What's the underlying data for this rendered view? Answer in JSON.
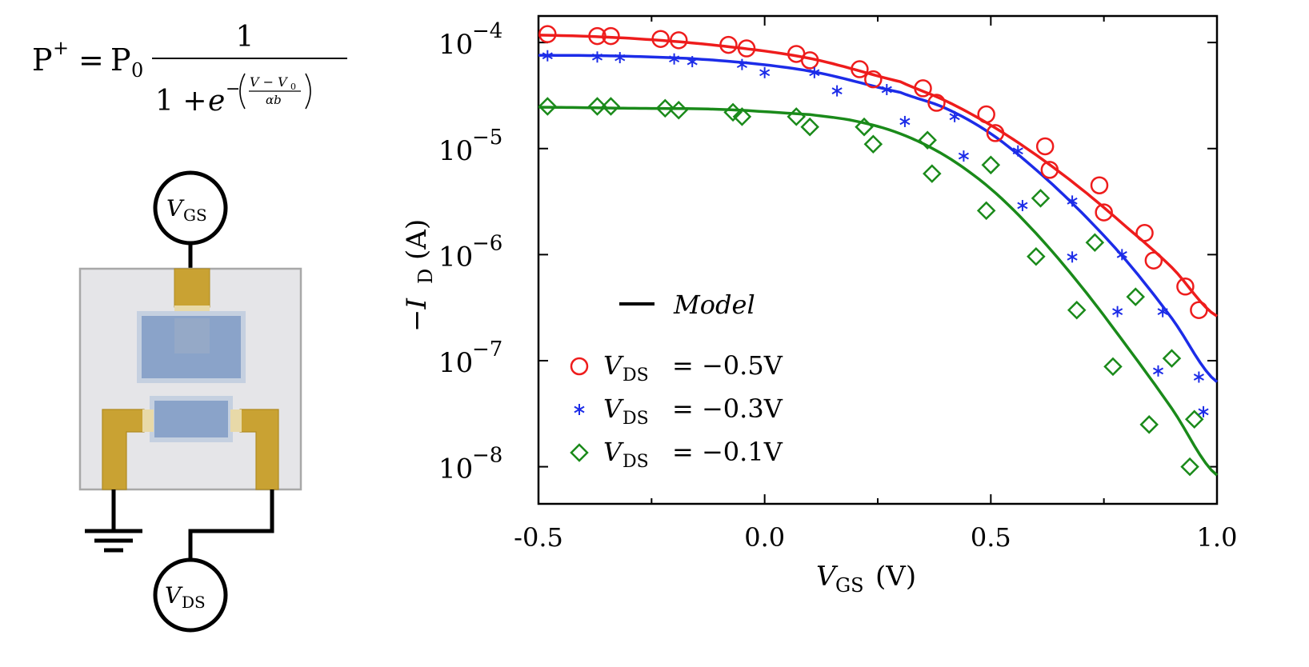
{
  "formula": {
    "lhs": "P",
    "lhs_sup": "+",
    "eq": "=",
    "coef": "P",
    "coef_sub": "0",
    "numerator": "1",
    "den_one": "1 +",
    "den_e": "e",
    "exp_minus": "−",
    "exp_num": "V − V",
    "exp_num_sub": "0",
    "exp_den": "αb"
  },
  "circuit": {
    "vgs_label": "V",
    "vgs_sub": "GS",
    "vds_label": "V",
    "vds_sub": "DS"
  },
  "chart_data": {
    "type": "scatter",
    "title": "",
    "xlabel": "V",
    "xlabel_sub": "GS",
    "xlabel_unit": "(V)",
    "ylabel": "−I",
    "ylabel_sub": "D",
    "ylabel_unit": "(A)",
    "xlim": [
      -0.5,
      1.0
    ],
    "ylim_log10": [
      -8.35,
      -3.75
    ],
    "y_scale": "log",
    "x_ticks": [
      {
        "value": -0.5,
        "label": "-0.5"
      },
      {
        "value": 0.0,
        "label": "0.0"
      },
      {
        "value": 0.5,
        "label": "0.5"
      },
      {
        "value": 1.0,
        "label": "1.0"
      }
    ],
    "y_ticks": [
      {
        "exp": -4,
        "base": "10",
        "sup": "−4"
      },
      {
        "exp": -5,
        "base": "10",
        "sup": "−5"
      },
      {
        "exp": -6,
        "base": "10",
        "sup": "−6"
      },
      {
        "exp": -7,
        "base": "10",
        "sup": "−7"
      },
      {
        "exp": -8,
        "base": "10",
        "sup": "−8"
      }
    ],
    "legend_model": "Model",
    "series": [
      {
        "name": "V_DS = −0.5V",
        "label_v": "V",
        "label_sub": "DS",
        "label_rest": "= −0.5V",
        "color": "#ee1c1c",
        "marker": "circle",
        "points": [
          [
            -0.48,
            0.00012
          ],
          [
            -0.37,
            0.000115
          ],
          [
            -0.34,
            0.000115
          ],
          [
            -0.23,
            0.000108
          ],
          [
            -0.19,
            0.000105
          ],
          [
            -0.08,
            9.5e-05
          ],
          [
            -0.04,
            8.8e-05
          ],
          [
            0.07,
            7.8e-05
          ],
          [
            0.1,
            6.8e-05
          ],
          [
            0.21,
            5.6e-05
          ],
          [
            0.24,
            4.5e-05
          ],
          [
            0.35,
            3.7e-05
          ],
          [
            0.38,
            2.7e-05
          ],
          [
            0.49,
            2.1e-05
          ],
          [
            0.51,
            1.4e-05
          ],
          [
            0.62,
            1.05e-05
          ],
          [
            0.63,
            6.3e-06
          ],
          [
            0.74,
            4.5e-06
          ],
          [
            0.75,
            2.5e-06
          ],
          [
            0.84,
            1.6e-06
          ],
          [
            0.86,
            8.8e-07
          ],
          [
            0.93,
            5e-07
          ],
          [
            0.96,
            3e-07
          ]
        ],
        "model_log10": [
          [
            -0.5,
            -3.93
          ],
          [
            -0.3,
            -3.96
          ],
          [
            -0.1,
            -4.03
          ],
          [
            0.1,
            -4.15
          ],
          [
            0.3,
            -4.37
          ],
          [
            0.4,
            -4.55
          ],
          [
            0.5,
            -4.78
          ],
          [
            0.6,
            -5.06
          ],
          [
            0.7,
            -5.38
          ],
          [
            0.8,
            -5.74
          ],
          [
            0.9,
            -6.12
          ],
          [
            1.0,
            -6.58
          ]
        ]
      },
      {
        "name": "V_DS = −0.3V",
        "label_v": "V",
        "label_sub": "DS",
        "label_rest": "= −0.3V",
        "color": "#1c2ce8",
        "marker": "star",
        "points": [
          [
            -0.48,
            7.5e-05
          ],
          [
            -0.37,
            7.3e-05
          ],
          [
            -0.32,
            7.2e-05
          ],
          [
            -0.2,
            7e-05
          ],
          [
            -0.16,
            6.6e-05
          ],
          [
            -0.05,
            6.2e-05
          ],
          [
            0.0,
            5.2e-05
          ],
          [
            0.11,
            5.2e-05
          ],
          [
            0.16,
            3.5e-05
          ],
          [
            0.27,
            3.6e-05
          ],
          [
            0.31,
            1.8e-05
          ],
          [
            0.42,
            2e-05
          ],
          [
            0.44,
            8.5e-06
          ],
          [
            0.56,
            9.5e-06
          ],
          [
            0.57,
            2.9e-06
          ],
          [
            0.68,
            3.2e-06
          ],
          [
            0.68,
            9.5e-07
          ],
          [
            0.79,
            1e-06
          ],
          [
            0.78,
            2.9e-07
          ],
          [
            0.88,
            2.9e-07
          ],
          [
            0.87,
            8e-08
          ],
          [
            0.96,
            7e-08
          ],
          [
            0.97,
            3.3e-08
          ]
        ],
        "model_log10": [
          [
            -0.5,
            -4.12
          ],
          [
            -0.3,
            -4.13
          ],
          [
            -0.1,
            -4.17
          ],
          [
            0.1,
            -4.27
          ],
          [
            0.3,
            -4.47
          ],
          [
            0.4,
            -4.62
          ],
          [
            0.5,
            -4.86
          ],
          [
            0.6,
            -5.2
          ],
          [
            0.7,
            -5.6
          ],
          [
            0.8,
            -6.06
          ],
          [
            0.9,
            -6.6
          ],
          [
            1.0,
            -7.2
          ]
        ]
      },
      {
        "name": "V_DS = −0.1V",
        "label_v": "V",
        "label_sub": "DS",
        "label_rest": "= −0.1V",
        "color": "#1a8a1a",
        "marker": "diamond",
        "points": [
          [
            -0.48,
            2.5e-05
          ],
          [
            -0.37,
            2.5e-05
          ],
          [
            -0.34,
            2.5e-05
          ],
          [
            -0.22,
            2.4e-05
          ],
          [
            -0.19,
            2.3e-05
          ],
          [
            -0.07,
            2.2e-05
          ],
          [
            -0.05,
            2e-05
          ],
          [
            0.07,
            2e-05
          ],
          [
            0.1,
            1.6e-05
          ],
          [
            0.22,
            1.6e-05
          ],
          [
            0.24,
            1.1e-05
          ],
          [
            0.36,
            1.2e-05
          ],
          [
            0.37,
            5.8e-06
          ],
          [
            0.5,
            7e-06
          ],
          [
            0.49,
            2.6e-06
          ],
          [
            0.61,
            3.4e-06
          ],
          [
            0.6,
            9.6e-07
          ],
          [
            0.73,
            1.3e-06
          ],
          [
            0.69,
            3e-07
          ],
          [
            0.82,
            4e-07
          ],
          [
            0.77,
            8.8e-08
          ],
          [
            0.9,
            1.05e-07
          ],
          [
            0.85,
            2.5e-08
          ],
          [
            0.95,
            2.8e-08
          ],
          [
            0.94,
            1e-08
          ]
        ],
        "model_log10": [
          [
            -0.5,
            -4.61
          ],
          [
            -0.3,
            -4.62
          ],
          [
            -0.1,
            -4.63
          ],
          [
            0.1,
            -4.68
          ],
          [
            0.2,
            -4.74
          ],
          [
            0.3,
            -4.86
          ],
          [
            0.4,
            -5.07
          ],
          [
            0.5,
            -5.38
          ],
          [
            0.6,
            -5.8
          ],
          [
            0.7,
            -6.3
          ],
          [
            0.8,
            -6.86
          ],
          [
            0.9,
            -7.45
          ],
          [
            1.0,
            -8.08
          ]
        ]
      }
    ]
  }
}
